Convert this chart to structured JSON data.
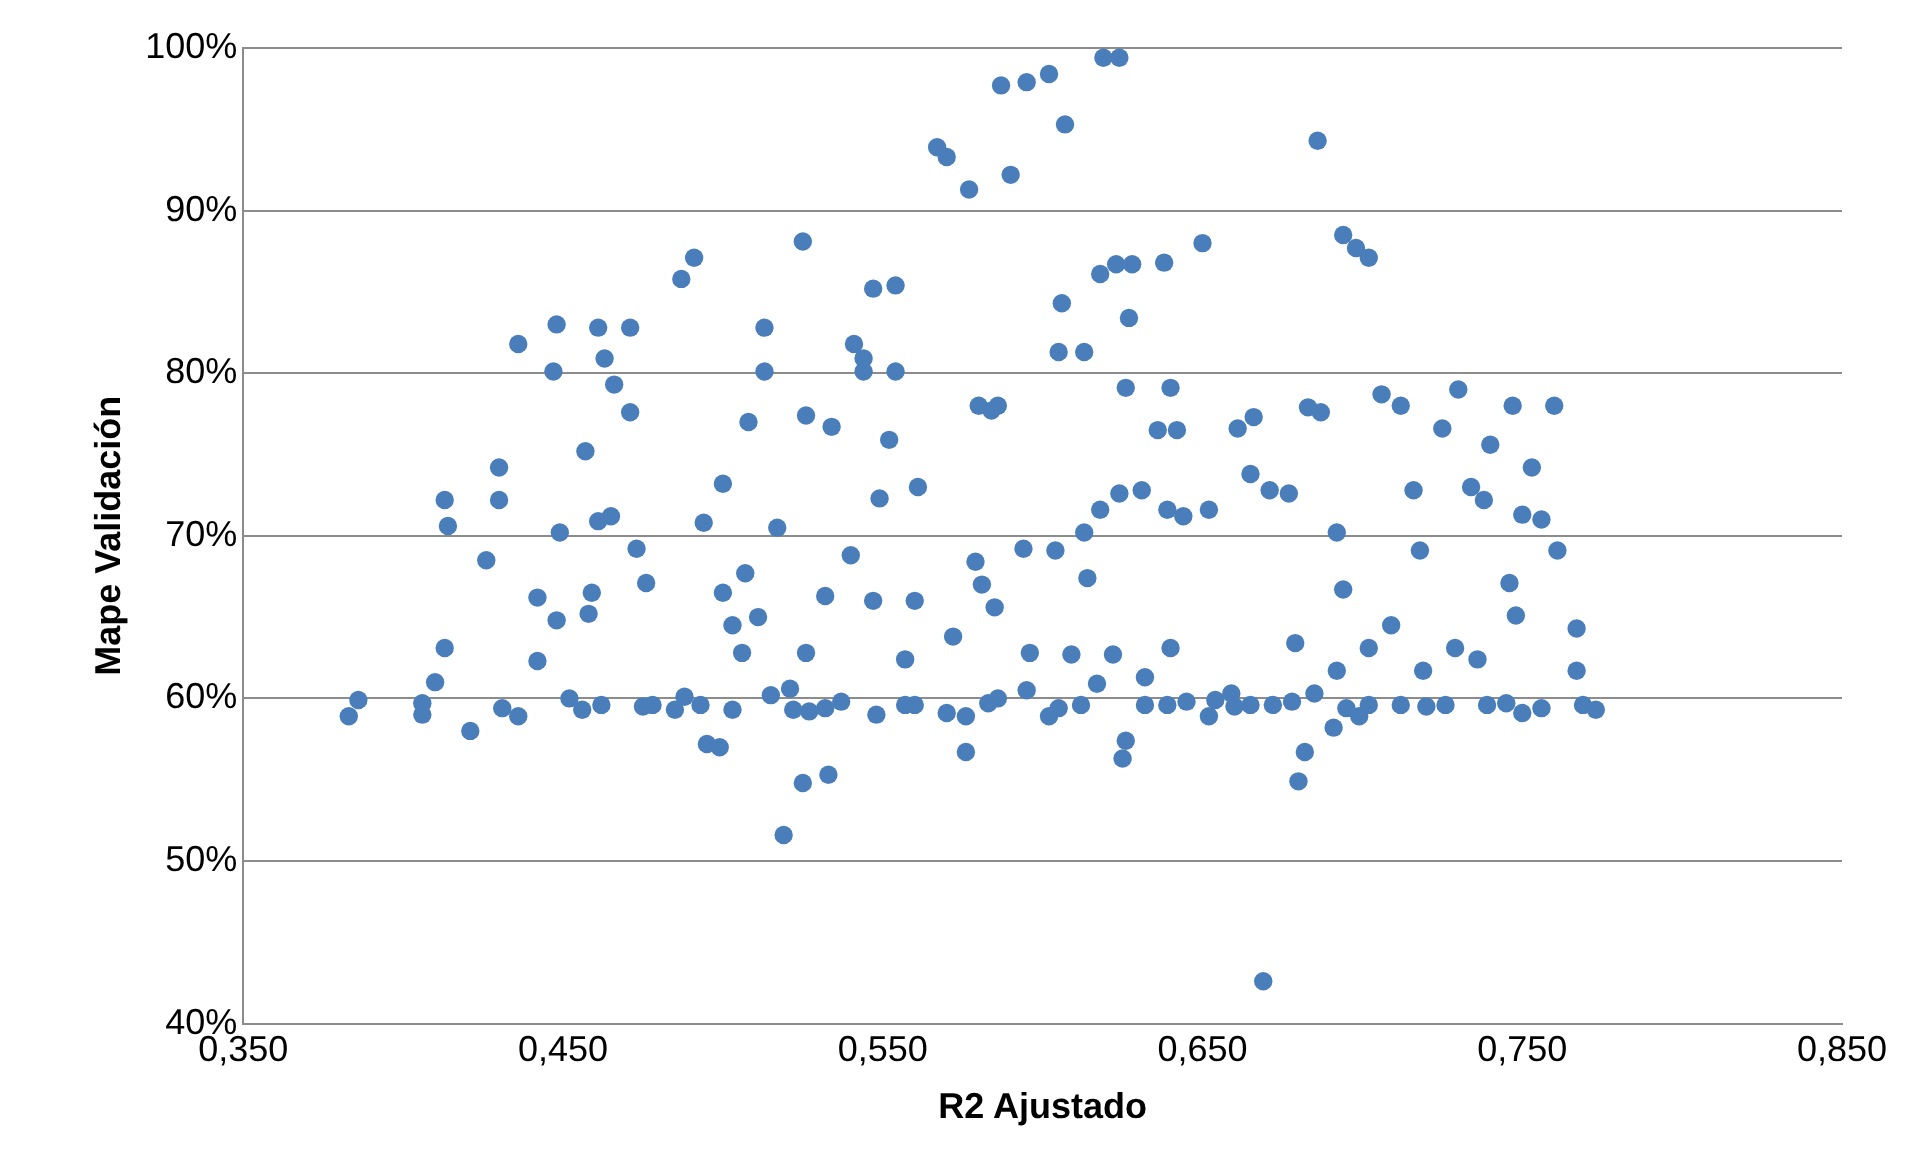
{
  "chart_data": {
    "type": "scatter",
    "xlabel": "R2 Ajustado",
    "ylabel": "Mape Validación",
    "xlim": [
      0.35,
      0.85
    ],
    "xticks": [
      {
        "value": 0.35,
        "label": "0,350"
      },
      {
        "value": 0.45,
        "label": "0,450"
      },
      {
        "value": 0.55,
        "label": "0,550"
      },
      {
        "value": 0.65,
        "label": "0,650"
      },
      {
        "value": 0.75,
        "label": "0,750"
      },
      {
        "value": 0.85,
        "label": "0,850"
      }
    ],
    "ylim": [
      40,
      100
    ],
    "yticks": [
      {
        "value": 40,
        "label": "40%"
      },
      {
        "value": 50,
        "label": "50%"
      },
      {
        "value": 60,
        "label": "60%"
      },
      {
        "value": 70,
        "label": "70%"
      },
      {
        "value": 80,
        "label": "80%"
      },
      {
        "value": 90,
        "label": "90%"
      },
      {
        "value": 100,
        "label": "100%"
      }
    ],
    "grid": "y",
    "legend": false,
    "marker": "circle",
    "series": [
      {
        "color": "#4a7ebb",
        "x": [
          0.383,
          0.386,
          0.406,
          0.406,
          0.41,
          0.413,
          0.414,
          0.413,
          0.421,
          0.426,
          0.43,
          0.43,
          0.436,
          0.431,
          0.436,
          0.442,
          0.442,
          0.448,
          0.448,
          0.447,
          0.449,
          0.452,
          0.456,
          0.457,
          0.458,
          0.461,
          0.459,
          0.462,
          0.466,
          0.465,
          0.461,
          0.471,
          0.463,
          0.471,
          0.473,
          0.476,
          0.478,
          0.485,
          0.487,
          0.491,
          0.493,
          0.495,
          0.499,
          0.506,
          0.5,
          0.507,
          0.494,
          0.5,
          0.508,
          0.513,
          0.513,
          0.517,
          0.521,
          0.519,
          0.522,
          0.525,
          0.532,
          0.533,
          0.526,
          0.526,
          0.525,
          0.534,
          0.541,
          0.544,
          0.547,
          0.544,
          0.549,
          0.547,
          0.552,
          0.554,
          0.554,
          0.557,
          0.557,
          0.561,
          0.572,
          0.576,
          0.581,
          0.584,
          0.567,
          0.57,
          0.577,
          0.59,
          0.587,
          0.595,
          0.602,
          0.607,
          0.619,
          0.624,
          0.58,
          0.586,
          0.606,
          0.605,
          0.613,
          0.618,
          0.623,
          0.628,
          0.638,
          0.65,
          0.627,
          0.626,
          0.64,
          0.636,
          0.642,
          0.618,
          0.624,
          0.631,
          0.639,
          0.644,
          0.652,
          0.661,
          0.666,
          0.594,
          0.604,
          0.613,
          0.614,
          0.596,
          0.609,
          0.622,
          0.632,
          0.64,
          0.654,
          0.669,
          0.612,
          0.586,
          0.602,
          0.626,
          0.625,
          0.576,
          0.639,
          0.652,
          0.686,
          0.694,
          0.698,
          0.702,
          0.665,
          0.671,
          0.677,
          0.683,
          0.687,
          0.692,
          0.694,
          0.706,
          0.712,
          0.716,
          0.718,
          0.73,
          0.725,
          0.734,
          0.738,
          0.74,
          0.747,
          0.753,
          0.756,
          0.76,
          0.761,
          0.75,
          0.746,
          0.748,
          0.767,
          0.767,
          0.769,
          0.736,
          0.729,
          0.719,
          0.709,
          0.702,
          0.692,
          0.685,
          0.679,
          0.672,
          0.682,
          0.699,
          0.712,
          0.726,
          0.739,
          0.75,
          0.756,
          0.773,
          0.68,
          0.691,
          0.702,
          0.665,
          0.659,
          0.475,
          0.488,
          0.503,
          0.515,
          0.527,
          0.537,
          0.548,
          0.56,
          0.57,
          0.583,
          0.595,
          0.605,
          0.617,
          0.632,
          0.645,
          0.66,
          0.678,
          0.695,
          0.72,
          0.745,
          0.503,
          0.511,
          0.532,
          0.54,
          0.56,
          0.579,
          0.585
        ],
        "values": [
          58.9,
          59.9,
          59.0,
          59.7,
          61.0,
          63.1,
          70.6,
          72.2,
          58.0,
          68.5,
          74.2,
          72.2,
          81.8,
          59.4,
          58.9,
          62.3,
          66.2,
          64.8,
          83.0,
          80.1,
          70.2,
          60.0,
          59.3,
          75.2,
          65.2,
          70.9,
          66.5,
          59.6,
          79.3,
          71.2,
          82.8,
          82.8,
          80.9,
          77.6,
          69.2,
          67.1,
          59.6,
          59.3,
          85.8,
          87.1,
          59.6,
          57.2,
          57.0,
          62.8,
          66.5,
          67.7,
          70.8,
          73.2,
          77.0,
          82.8,
          80.1,
          70.5,
          60.6,
          51.6,
          59.3,
          54.8,
          59.4,
          55.3,
          77.4,
          62.8,
          88.1,
          76.7,
          81.8,
          80.1,
          85.2,
          80.9,
          72.3,
          66.0,
          75.9,
          80.1,
          85.4,
          59.6,
          62.4,
          73.0,
          63.8,
          58.9,
          67.0,
          77.7,
          93.9,
          93.3,
          91.3,
          92.2,
          97.7,
          97.9,
          98.4,
          95.3,
          99.4,
          99.4,
          78.0,
          78.0,
          84.3,
          81.3,
          81.3,
          86.1,
          86.7,
          86.7,
          86.8,
          88.0,
          83.4,
          79.1,
          79.1,
          76.5,
          76.5,
          71.6,
          72.6,
          72.8,
          71.6,
          71.2,
          71.6,
          76.6,
          77.3,
          69.2,
          69.1,
          70.2,
          67.4,
          62.8,
          62.7,
          62.7,
          61.3,
          63.1,
          59.9,
          42.6,
          59.6,
          60.0,
          58.9,
          57.4,
          56.3,
          56.7,
          59.6,
          58.9,
          94.3,
          88.5,
          87.7,
          87.1,
          73.8,
          72.8,
          72.6,
          77.9,
          77.6,
          70.2,
          66.7,
          78.7,
          78.0,
          72.8,
          69.1,
          79.0,
          76.6,
          73.0,
          72.2,
          75.6,
          78.0,
          74.2,
          71.0,
          78.0,
          69.1,
          71.3,
          67.1,
          65.1,
          64.3,
          61.7,
          59.6,
          62.4,
          63.1,
          61.7,
          64.5,
          63.1,
          61.7,
          60.3,
          63.4,
          59.6,
          56.7,
          58.9,
          59.6,
          59.6,
          59.6,
          59.1,
          59.4,
          59.3,
          54.9,
          58.2,
          59.6,
          59.6,
          60.3,
          59.5,
          60.1,
          59.3,
          60.2,
          59.2,
          59.8,
          59.0,
          59.6,
          59.1,
          59.7,
          60.5,
          59.4,
          60.9,
          59.6,
          59.8,
          59.5,
          59.8,
          59.4,
          59.5,
          59.7,
          64.5,
          65.0,
          66.3,
          68.8,
          66.0,
          68.4,
          65.6
        ]
      }
    ]
  }
}
